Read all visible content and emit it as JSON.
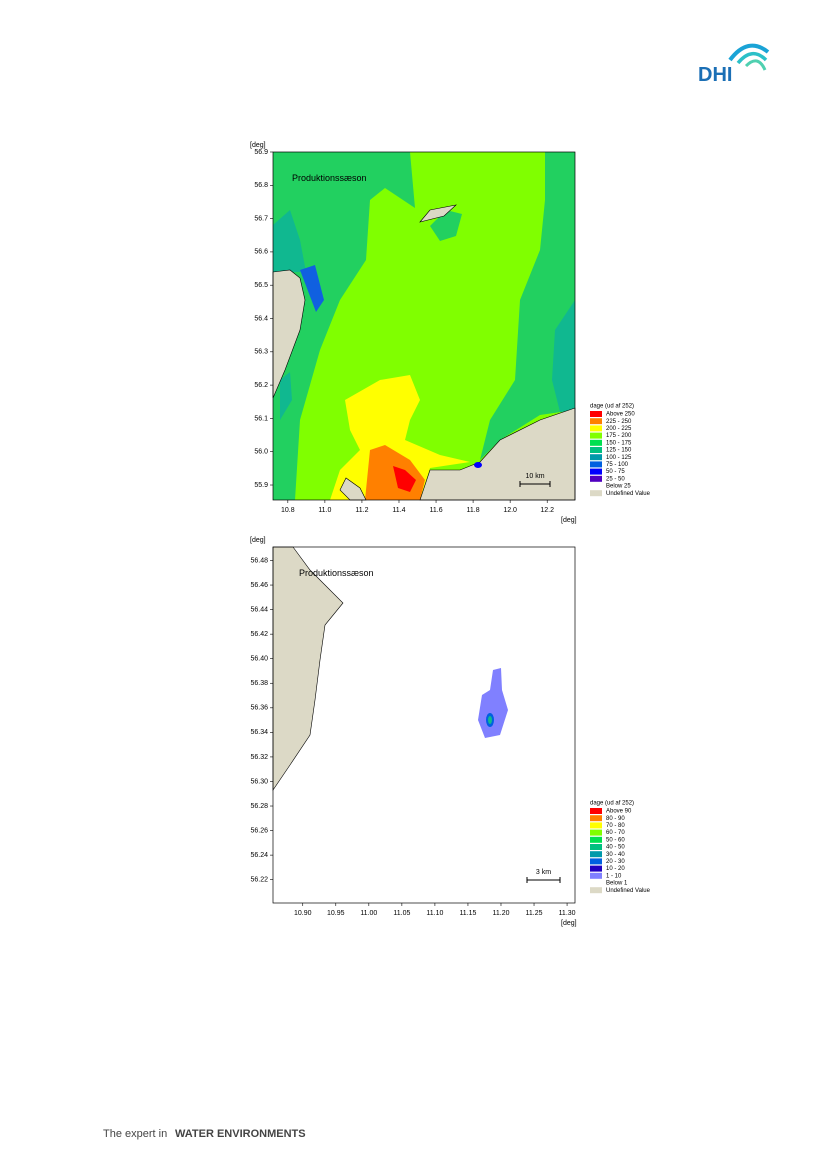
{
  "header": {
    "logo": "DHI"
  },
  "maps": [
    {
      "title": "Produktionssæson",
      "y_unit": "[deg]",
      "x_unit": "[deg]",
      "xlim": [
        10.72,
        12.35
      ],
      "ylim": [
        55.855,
        56.9
      ],
      "xticks": [
        10.8,
        {
          "value": 11,
          "label": "11.0"
        },
        11.2,
        11.4,
        11.6,
        11.8,
        {
          "value": 12,
          "label": "12.0"
        },
        12.2
      ],
      "yticks": [
        56.9,
        56.8,
        56.7,
        56.6,
        56.5,
        56.4,
        56.3,
        56.2,
        56.1,
        {
          "value": 56,
          "label": "56.0"
        },
        55.9
      ],
      "legend": {
        "title": "dage (ud af 252)",
        "entries": [
          {
            "label": "Above 250",
            "color": "#ff0000"
          },
          {
            "label": "225 - 250",
            "color": "#ff8000"
          },
          {
            "label": "200 - 225",
            "color": "#ffff00"
          },
          {
            "label": "175 - 200",
            "color": "#80ff00"
          },
          {
            "label": "150 - 175",
            "color": "#00e050"
          },
          {
            "label": "125 - 150",
            "color": "#00c080"
          },
          {
            "label": "100 - 125",
            "color": "#0099aa"
          },
          {
            "label": "75 - 100",
            "color": "#0060e0"
          },
          {
            "label": "50 - 75",
            "color": "#0000ff"
          },
          {
            "label": "25 - 50",
            "color": "#5000c0"
          },
          {
            "label": "Below 25",
            "color": "#ffffff"
          },
          {
            "label": "Undefined Value",
            "color": "#dcd9c6"
          }
        ]
      },
      "scale_bar": "10 km"
    },
    {
      "title": "Produktionssæson",
      "y_unit": "[deg]",
      "x_unit": "[deg]",
      "xlim": [
        10.855,
        11.312
      ],
      "ylim": [
        56.201,
        56.491
      ],
      "xticks": [
        {
          "value": 10.9,
          "label": "10.90"
        },
        10.95,
        {
          "value": 11,
          "label": "11.00"
        },
        11.05,
        {
          "value": 11.1,
          "label": "11.10"
        },
        11.15,
        {
          "value": 11.2,
          "label": "11.20"
        },
        11.25,
        {
          "value": 11.3,
          "label": "11.30"
        }
      ],
      "yticks": [
        56.48,
        56.46,
        56.44,
        56.42,
        {
          "value": 56.4,
          "label": "56.40"
        },
        56.38,
        56.36,
        56.34,
        56.32,
        {
          "value": 56.3,
          "label": "56.30"
        },
        56.28,
        56.26,
        56.24,
        56.22
      ],
      "legend": {
        "title": "dage (ud af 252)",
        "entries": [
          {
            "label": "Above 90",
            "color": "#ff0000"
          },
          {
            "label": "80 - 90",
            "color": "#ff8000"
          },
          {
            "label": "70 - 80",
            "color": "#ffff00"
          },
          {
            "label": "60 - 70",
            "color": "#80ff00"
          },
          {
            "label": "50 - 60",
            "color": "#00e050"
          },
          {
            "label": "40 - 50",
            "color": "#00c080"
          },
          {
            "label": "30 - 40",
            "color": "#0099aa"
          },
          {
            "label": "20 - 30",
            "color": "#0060e0"
          },
          {
            "label": "10 - 20",
            "color": "#2000c0"
          },
          {
            "label": "1 - 10",
            "color": "#8080ff"
          },
          {
            "label": "Below 1",
            "color": "#ffffff"
          },
          {
            "label": "Undefined Value",
            "color": "#dcd9c6"
          }
        ]
      },
      "scale_bar": "3 km"
    }
  ],
  "footer": {
    "text_light": "The expert in",
    "text_bold": "WATER ENVIRONMENTS"
  }
}
